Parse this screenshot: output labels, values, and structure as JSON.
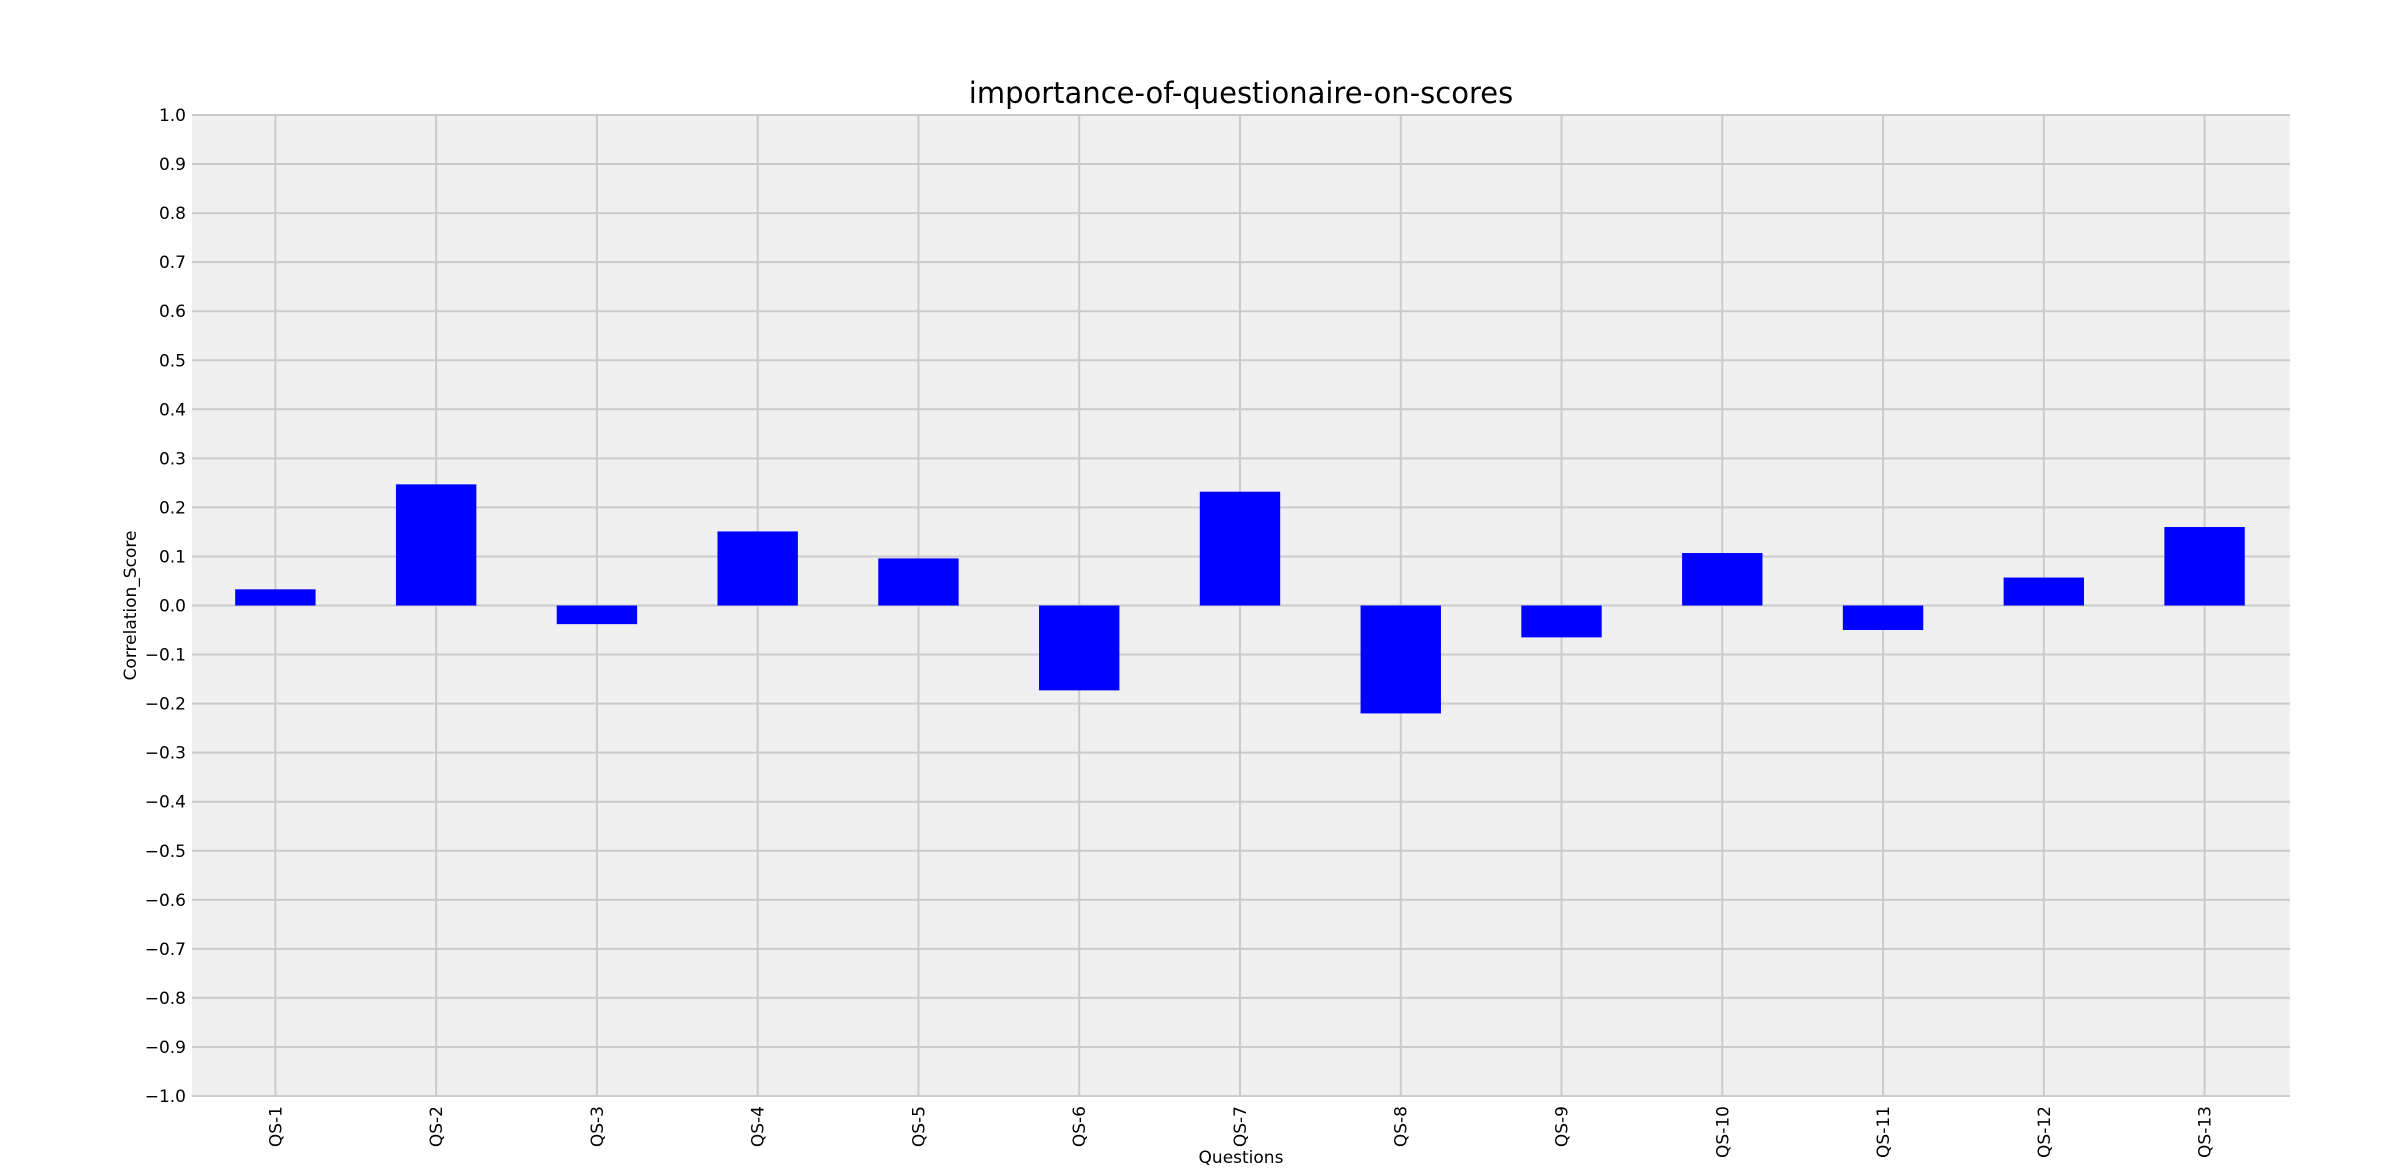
{
  "chart_data": {
    "type": "bar",
    "title": "importance-of-questionaire-on-scores",
    "xlabel": "Questions",
    "ylabel": "Correlation_Score",
    "categories": [
      "QS-1",
      "QS-2",
      "QS-3",
      "QS-4",
      "QS-5",
      "QS-6",
      "QS-7",
      "QS-8",
      "QS-9",
      "QS-10",
      "QS-11",
      "QS-12",
      "QS-13"
    ],
    "values": [
      0.033,
      0.247,
      -0.038,
      0.151,
      0.096,
      -0.173,
      0.232,
      -0.22,
      -0.065,
      0.107,
      -0.05,
      0.057,
      0.16
    ],
    "ylim": [
      -1.0,
      1.0
    ],
    "yticks": [
      "1.0",
      "0.9",
      "0.8",
      "0.7",
      "0.6",
      "0.5",
      "0.4",
      "0.3",
      "0.2",
      "0.1",
      "0.0",
      "−0.1",
      "−0.2",
      "−0.3",
      "−0.4",
      "−0.5",
      "−0.6",
      "−0.7",
      "−0.8",
      "−0.9",
      "−1.0"
    ],
    "grid": true,
    "colors": {
      "bar": "#0000ff",
      "plot_background": "#f0f0f0",
      "grid": "#cbcbcb"
    }
  }
}
